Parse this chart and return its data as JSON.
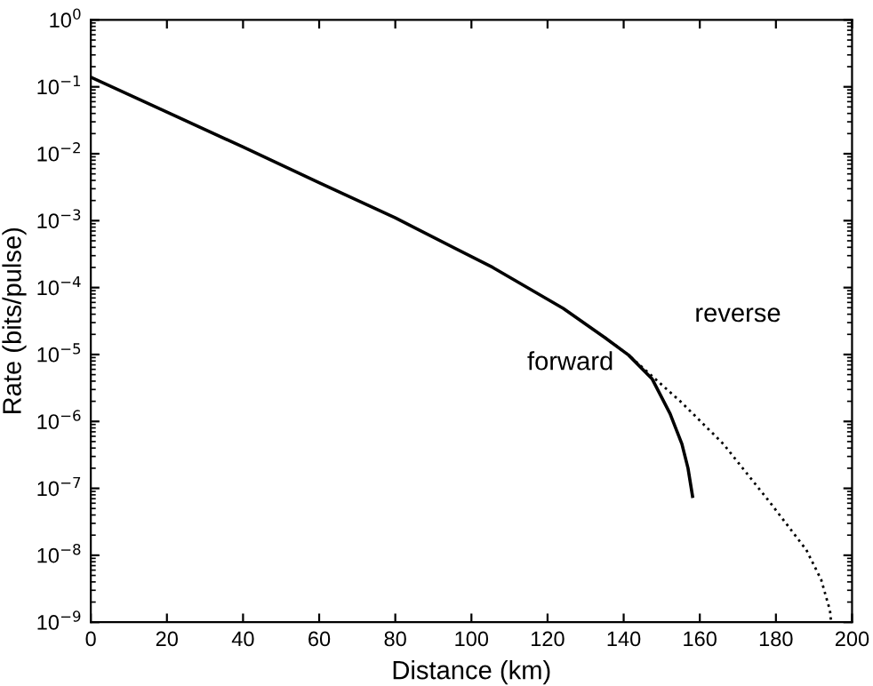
{
  "chart_data": {
    "type": "line",
    "xlabel": "Distance (km)",
    "ylabel": "Rate (bits/pulse)",
    "log": "y",
    "xlim": [
      0,
      200
    ],
    "xticks": [
      0,
      20,
      40,
      60,
      80,
      100,
      120,
      140,
      160,
      180,
      200
    ],
    "ylim": [
      1e-09,
      1
    ],
    "yticks": [
      {
        "value": 1,
        "label": "10$^{0}$"
      },
      {
        "value": 0.1,
        "label": "10$^{−1}$"
      },
      {
        "value": 0.01,
        "label": "10$^{−2}$"
      },
      {
        "value": 0.001,
        "label": "10$^{−3}$"
      },
      {
        "value": 0.0001,
        "label": "10$^{−4}$"
      },
      {
        "value": 1e-05,
        "label": "10$^{−5}$"
      },
      {
        "value": 1e-06,
        "label": "10$^{−6}$"
      },
      {
        "value": 1e-07,
        "label": "10$^{−7}$"
      },
      {
        "value": 1e-08,
        "label": "10$^{−8}$"
      },
      {
        "value": 1e-09,
        "label": "10$^{−9}$"
      }
    ],
    "grid": false,
    "legend": false,
    "marker": "none",
    "series": [
      {
        "name": "forward",
        "color": "#000000",
        "line_style": "solid",
        "x": [
          0,
          20,
          40,
          60,
          80,
          105.6,
          124.1,
          135,
          141.3,
          147.5,
          152.2,
          155.3,
          156.9,
          158.1
        ],
        "values": [
          0.139,
          0.042,
          0.0126,
          0.0037,
          0.0011,
          0.0002,
          4.9e-05,
          1.8e-05,
          9.8e-06,
          4.3e-06,
          1.3e-06,
          4.6e-07,
          2e-07,
          7.6e-08
        ]
      },
      {
        "name": "reverse",
        "color": "#000000",
        "line_style": "dotted",
        "x": [
          135,
          141.3,
          155.3,
          166.2,
          178.6,
          188,
          191.9,
          194.2,
          194.5
        ],
        "values": [
          1.8e-05,
          9.8e-06,
          1.9e-06,
          4.6e-07,
          6e-08,
          1.2e-08,
          4.3e-09,
          1.5e-09,
          1e-09
        ]
      }
    ]
  }
}
